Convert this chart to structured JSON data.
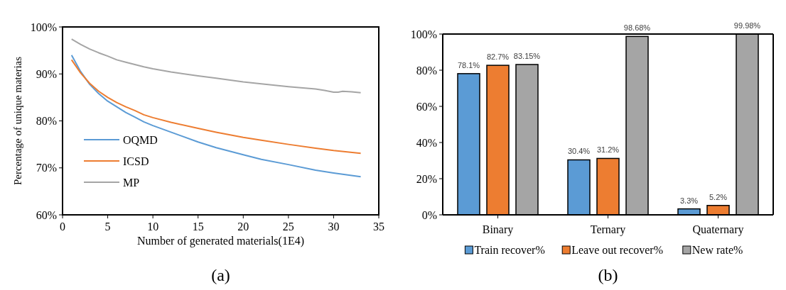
{
  "chart_data": [
    {
      "type": "line",
      "xlabel": "Number of generated materials(1E4)",
      "ylabel": "Percentage of unique materias",
      "annotations": [
        "(a)"
      ],
      "xlim": [
        0,
        35
      ],
      "ylim": [
        60,
        100
      ],
      "xticks": [
        0,
        5,
        10,
        15,
        20,
        25,
        30,
        35
      ],
      "yticks": [
        {
          "value": 60,
          "label": "60%"
        },
        {
          "value": 70,
          "label": "70%"
        },
        {
          "value": 80,
          "label": "80%"
        },
        {
          "value": 90,
          "label": "90%"
        },
        {
          "value": 100,
          "label": "100%"
        }
      ],
      "legend": "left",
      "grid": false,
      "marker": "none",
      "line_style": "solid",
      "series": [
        {
          "name": "OQMD",
          "color": "#5b9bd5",
          "x": [
            1,
            2,
            3,
            4,
            5,
            6,
            7,
            8,
            9,
            10,
            12,
            15,
            17,
            20,
            22,
            25,
            28,
            30,
            33
          ],
          "values": [
            94,
            90.5,
            87.8,
            85.8,
            84.2,
            83,
            81.8,
            80.8,
            79.8,
            79,
            77.6,
            75.5,
            74.3,
            72.8,
            71.8,
            70.7,
            69.5,
            68.9,
            68.1
          ]
        },
        {
          "name": "ICSD",
          "color": "#ed7d31",
          "x": [
            1,
            2,
            3,
            4,
            5,
            6,
            7,
            8,
            9,
            10,
            12,
            15,
            17,
            20,
            22,
            25,
            28,
            30,
            33
          ],
          "values": [
            93,
            90.2,
            88,
            86.3,
            85,
            83.9,
            83,
            82.2,
            81.3,
            80.7,
            79.7,
            78.4,
            77.6,
            76.5,
            75.9,
            75,
            74.2,
            73.7,
            73.1
          ]
        },
        {
          "name": "MP",
          "color": "#a5a5a5",
          "x": [
            1,
            2,
            3,
            4,
            5,
            6,
            7,
            8,
            9,
            10,
            12,
            15,
            17,
            20,
            22,
            25,
            28,
            29,
            30,
            30.5,
            31,
            32,
            33
          ],
          "values": [
            97.4,
            96.3,
            95.3,
            94.5,
            93.8,
            93,
            92.5,
            92,
            91.5,
            91.1,
            90.4,
            89.6,
            89.1,
            88.3,
            87.9,
            87.3,
            86.8,
            86.5,
            86.1,
            86.1,
            86.3,
            86.2,
            86
          ]
        }
      ]
    },
    {
      "type": "bar",
      "annotations": [
        "(b)"
      ],
      "categories": [
        "Binary",
        "Ternary",
        "Quaternary"
      ],
      "ylim": [
        0,
        100
      ],
      "yticks": [
        {
          "value": 0,
          "label": "0%"
        },
        {
          "value": 20,
          "label": "20%"
        },
        {
          "value": 40,
          "label": "40%"
        },
        {
          "value": 60,
          "label": "60%"
        },
        {
          "value": 80,
          "label": "80%"
        },
        {
          "value": 100,
          "label": "100%"
        }
      ],
      "legend": "bottom",
      "grid": false,
      "series": [
        {
          "name": "Train recover%",
          "color": "#5b9bd5",
          "values": [
            78.1,
            30.4,
            3.3
          ],
          "value_labels": [
            "78.1%",
            "30.4%",
            "3.3%"
          ]
        },
        {
          "name": "Leave out recover%",
          "color": "#ed7d31",
          "values": [
            82.7,
            31.2,
            5.2
          ],
          "value_labels": [
            "82.7%",
            "31.2%",
            "5.2%"
          ]
        },
        {
          "name": "New rate%",
          "color": "#a5a5a5",
          "values": [
            83.15,
            98.68,
            99.98
          ],
          "value_labels": [
            "83.15%",
            "98.68%",
            "99.98%"
          ]
        }
      ]
    }
  ]
}
